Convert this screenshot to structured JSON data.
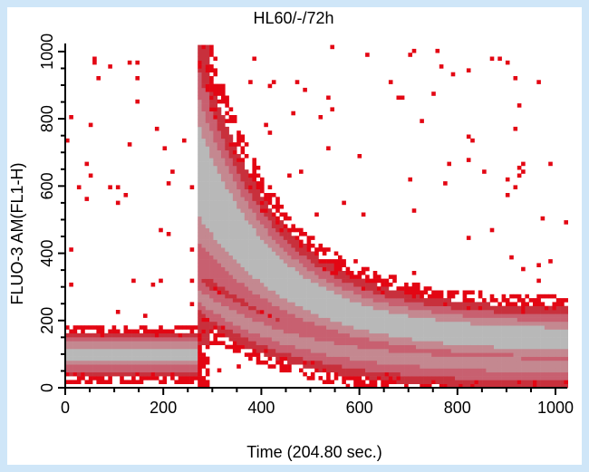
{
  "chart_data": {
    "type": "heatmap",
    "title": "HL60/-/72h",
    "xlabel": "Time (204.80 sec.)",
    "ylabel": "FLUO-3 AM(FL1-H)",
    "xlim": [
      0,
      1024
    ],
    "ylim": [
      0,
      1024
    ],
    "x_ticks": [
      "0",
      "200",
      "400",
      "600",
      "800",
      "1000"
    ],
    "y_ticks": [
      "0",
      "200",
      "400",
      "600",
      "800",
      "1000"
    ],
    "x_tick_values": [
      0,
      200,
      400,
      600,
      800,
      1000
    ],
    "y_tick_values": [
      0,
      200,
      400,
      600,
      800,
      1000
    ],
    "density_colors": [
      "#e30613",
      "#c8303c",
      "#c86070",
      "#c48890",
      "#b8b8b8"
    ],
    "background_color": "#cfe6f8",
    "stimulus_time": 268,
    "baseline": {
      "x_range": [
        0,
        268
      ],
      "center": 100,
      "spread": 60
    },
    "response_peak": {
      "x": 310,
      "center": 600,
      "upper": 1024
    },
    "plateau": {
      "x_range": [
        620,
        1024
      ],
      "center": 140,
      "spread": 80
    }
  }
}
